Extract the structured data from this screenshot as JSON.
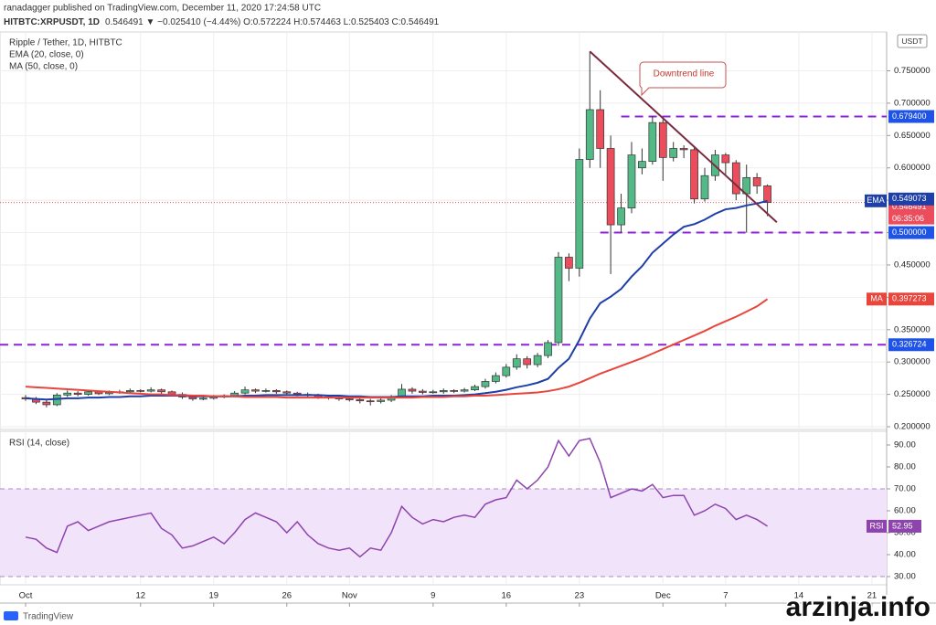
{
  "header": {
    "published": "ranadagger published on TradingView.com, December 11, 2020 17:24:58 UTC",
    "symbol": "HITBTC:XRPUSDT, 1D",
    "quote": "0.546491 ▼ −0.025410 (−4.44%) O:0.572224 H:0.574463 L:0.525403 C:0.546491"
  },
  "brand": "TradingView",
  "watermark": "arzinja.info",
  "chart_data": [
    {
      "type": "candlestick",
      "title": "Ripple / Tether, 1D, HITBTC",
      "currency": "USDT",
      "up_color": "#53b987",
      "down_color": "#eb4d5c",
      "xlim": [
        -2.45,
        82.41
      ],
      "ylim": [
        0.1958,
        0.81
      ],
      "xticks": [
        {
          "value": 0,
          "label": "Oct"
        },
        {
          "value": 11,
          "label": "12"
        },
        {
          "value": 18,
          "label": "19"
        },
        {
          "value": 25,
          "label": "26"
        },
        {
          "value": 31,
          "label": "Nov"
        },
        {
          "value": 39,
          "label": "9"
        },
        {
          "value": 46,
          "label": "16"
        },
        {
          "value": 53,
          "label": "23"
        },
        {
          "value": 61,
          "label": "Dec"
        },
        {
          "value": 67,
          "label": "7"
        },
        {
          "value": 74,
          "label": "14"
        },
        {
          "value": 81,
          "label": "21"
        }
      ],
      "yticks": [
        {
          "value": 0.2,
          "label": "0.200000"
        },
        {
          "value": 0.25,
          "label": "0.250000"
        },
        {
          "value": 0.3,
          "label": "0.300000"
        },
        {
          "value": 0.35,
          "label": "0.350000"
        },
        {
          "value": 0.4,
          "label": "0.400000"
        },
        {
          "value": 0.45,
          "label": "0.450000"
        },
        {
          "value": 0.5,
          "label": "0.500000"
        },
        {
          "value": 0.55,
          "label": "0.550000"
        },
        {
          "value": 0.6,
          "label": "0.600000"
        },
        {
          "value": 0.65,
          "label": "0.650000"
        },
        {
          "value": 0.7,
          "label": "0.700000"
        },
        {
          "value": 0.75,
          "label": "0.750000"
        }
      ],
      "grid": true,
      "open": [
        0.245,
        0.243,
        0.238,
        0.234,
        0.249,
        0.252,
        0.25,
        0.254,
        0.251,
        0.253,
        0.254,
        0.256,
        0.255,
        0.257,
        0.254,
        0.25,
        0.246,
        0.243,
        0.244,
        0.246,
        0.248,
        0.252,
        0.257,
        0.255,
        0.256,
        0.254,
        0.252,
        0.25,
        0.249,
        0.246,
        0.245,
        0.243,
        0.242,
        0.24,
        0.239,
        0.241,
        0.246,
        0.258,
        0.255,
        0.253,
        0.254,
        0.256,
        0.255,
        0.257,
        0.262,
        0.27,
        0.279,
        0.292,
        0.305,
        0.296,
        0.31,
        0.33,
        0.462,
        0.445,
        0.613,
        0.69,
        0.63,
        0.512,
        0.538,
        0.6,
        0.61,
        0.67,
        0.616,
        0.63,
        0.628,
        0.552,
        0.588,
        0.62,
        0.608,
        0.56,
        0.585,
        0.572224
      ],
      "high": [
        0.249,
        0.246,
        0.241,
        0.252,
        0.256,
        0.255,
        0.257,
        0.256,
        0.256,
        0.257,
        0.259,
        0.258,
        0.261,
        0.259,
        0.256,
        0.253,
        0.249,
        0.247,
        0.249,
        0.25,
        0.255,
        0.262,
        0.259,
        0.259,
        0.258,
        0.256,
        0.254,
        0.253,
        0.251,
        0.249,
        0.247,
        0.246,
        0.244,
        0.243,
        0.244,
        0.249,
        0.266,
        0.261,
        0.258,
        0.257,
        0.259,
        0.258,
        0.26,
        0.265,
        0.274,
        0.284,
        0.297,
        0.312,
        0.309,
        0.314,
        0.334,
        0.47,
        0.468,
        0.63,
        0.78,
        0.72,
        0.65,
        0.56,
        0.64,
        0.63,
        0.68,
        0.675,
        0.64,
        0.635,
        0.632,
        0.6,
        0.628,
        0.623,
        0.612,
        0.605,
        0.592,
        0.574463
      ],
      "low": [
        0.24,
        0.235,
        0.23,
        0.232,
        0.246,
        0.247,
        0.248,
        0.249,
        0.249,
        0.251,
        0.252,
        0.253,
        0.253,
        0.251,
        0.247,
        0.243,
        0.24,
        0.241,
        0.242,
        0.244,
        0.246,
        0.25,
        0.252,
        0.253,
        0.251,
        0.249,
        0.247,
        0.246,
        0.243,
        0.242,
        0.24,
        0.239,
        0.236,
        0.233,
        0.236,
        0.238,
        0.244,
        0.251,
        0.25,
        0.251,
        0.251,
        0.252,
        0.253,
        0.255,
        0.259,
        0.267,
        0.276,
        0.288,
        0.29,
        0.292,
        0.306,
        0.325,
        0.425,
        0.432,
        0.6,
        0.6,
        0.436,
        0.5,
        0.53,
        0.59,
        0.605,
        0.58,
        0.61,
        0.615,
        0.545,
        0.548,
        0.58,
        0.59,
        0.55,
        0.5,
        0.56,
        0.525403
      ],
      "close": [
        0.243,
        0.238,
        0.234,
        0.249,
        0.252,
        0.25,
        0.254,
        0.251,
        0.253,
        0.254,
        0.256,
        0.255,
        0.257,
        0.254,
        0.25,
        0.246,
        0.243,
        0.244,
        0.246,
        0.248,
        0.252,
        0.257,
        0.255,
        0.256,
        0.254,
        0.252,
        0.25,
        0.249,
        0.246,
        0.245,
        0.243,
        0.242,
        0.24,
        0.239,
        0.241,
        0.246,
        0.258,
        0.255,
        0.253,
        0.254,
        0.256,
        0.255,
        0.257,
        0.262,
        0.27,
        0.279,
        0.292,
        0.305,
        0.296,
        0.31,
        0.33,
        0.462,
        0.445,
        0.613,
        0.69,
        0.63,
        0.512,
        0.538,
        0.62,
        0.61,
        0.67,
        0.616,
        0.63,
        0.628,
        0.552,
        0.588,
        0.62,
        0.608,
        0.56,
        0.585,
        0.572224,
        0.546491
      ],
      "last_label": "0.546491",
      "countdown": "06:35:06",
      "series": [
        {
          "name": "EMA (20, close, 0)",
          "short": "EMA",
          "color": "#1f3fa8",
          "last_label": "0.549073",
          "values": [
            0.244,
            0.243,
            0.242,
            0.243,
            0.244,
            0.244,
            0.245,
            0.245,
            0.246,
            0.246,
            0.247,
            0.247,
            0.248,
            0.248,
            0.248,
            0.248,
            0.247,
            0.247,
            0.247,
            0.247,
            0.247,
            0.248,
            0.248,
            0.249,
            0.249,
            0.249,
            0.249,
            0.249,
            0.249,
            0.248,
            0.248,
            0.247,
            0.247,
            0.246,
            0.246,
            0.246,
            0.247,
            0.247,
            0.247,
            0.248,
            0.248,
            0.248,
            0.249,
            0.25,
            0.252,
            0.254,
            0.257,
            0.261,
            0.264,
            0.268,
            0.274,
            0.291,
            0.305,
            0.334,
            0.367,
            0.391,
            0.401,
            0.413,
            0.432,
            0.448,
            0.469,
            0.483,
            0.497,
            0.509,
            0.513,
            0.52,
            0.529,
            0.536,
            0.538,
            0.542,
            0.545,
            0.549073
          ]
        },
        {
          "name": "MA (50, close, 0)",
          "short": "MA",
          "color": "#e8453c",
          "last_label": "0.397273",
          "values": [
            0.262,
            0.261,
            0.26,
            0.259,
            0.258,
            0.257,
            0.256,
            0.255,
            0.254,
            0.253,
            0.252,
            0.251,
            0.25,
            0.25,
            0.249,
            0.249,
            0.248,
            0.248,
            0.247,
            0.247,
            0.247,
            0.246,
            0.246,
            0.246,
            0.246,
            0.245,
            0.245,
            0.245,
            0.245,
            0.245,
            0.245,
            0.245,
            0.245,
            0.245,
            0.245,
            0.245,
            0.245,
            0.245,
            0.246,
            0.246,
            0.246,
            0.247,
            0.247,
            0.248,
            0.248,
            0.249,
            0.25,
            0.251,
            0.252,
            0.253,
            0.255,
            0.258,
            0.262,
            0.268,
            0.275,
            0.282,
            0.288,
            0.294,
            0.3,
            0.306,
            0.313,
            0.32,
            0.327,
            0.334,
            0.341,
            0.348,
            0.356,
            0.363,
            0.37,
            0.378,
            0.386,
            0.397273
          ]
        }
      ],
      "levels": [
        {
          "value": 0.6794,
          "label": "0.679400",
          "from": 57
        },
        {
          "value": 0.5,
          "label": "0.500000",
          "from": 55
        },
        {
          "value": 0.326724,
          "label": "0.326724",
          "from": -2.45
        }
      ],
      "level_color": "#8e24d8",
      "annotation": {
        "text": "Downtrend line",
        "color": "#7b2b3e",
        "x": [
          54,
          71.9
        ],
        "y": [
          0.78,
          0.516
        ]
      }
    },
    {
      "type": "line",
      "title": "RSI (14, close)",
      "short": "RSI",
      "color": "#8e44ad",
      "last_label": "52.95",
      "xlim": [
        -2.45,
        82.41
      ],
      "ylim": [
        26.25,
        96.25
      ],
      "yticks": [
        {
          "value": 30,
          "label": "30.00"
        },
        {
          "value": 40,
          "label": "40.00"
        },
        {
          "value": 50,
          "label": "50.00"
        },
        {
          "value": 60,
          "label": "60.00"
        },
        {
          "value": 70,
          "label": "70.00"
        },
        {
          "value": 80,
          "label": "80.00"
        },
        {
          "value": 90,
          "label": "90.00"
        }
      ],
      "band": [
        30,
        70
      ],
      "values": [
        48,
        47,
        43,
        41,
        53,
        55,
        51,
        53,
        55,
        56,
        57,
        58,
        59,
        52,
        49,
        43,
        44,
        46,
        48,
        45,
        50,
        56,
        59,
        57,
        55,
        50,
        55,
        49,
        45,
        43,
        42,
        43,
        39,
        43,
        42,
        50,
        62,
        57,
        54,
        56,
        55,
        57,
        58,
        57,
        63,
        65,
        66,
        74,
        70,
        74,
        80,
        92,
        85,
        92,
        93,
        82,
        66,
        68,
        70,
        69,
        72,
        66,
        67,
        67,
        58,
        60,
        63,
        61,
        56,
        58,
        56,
        52.95
      ]
    }
  ]
}
